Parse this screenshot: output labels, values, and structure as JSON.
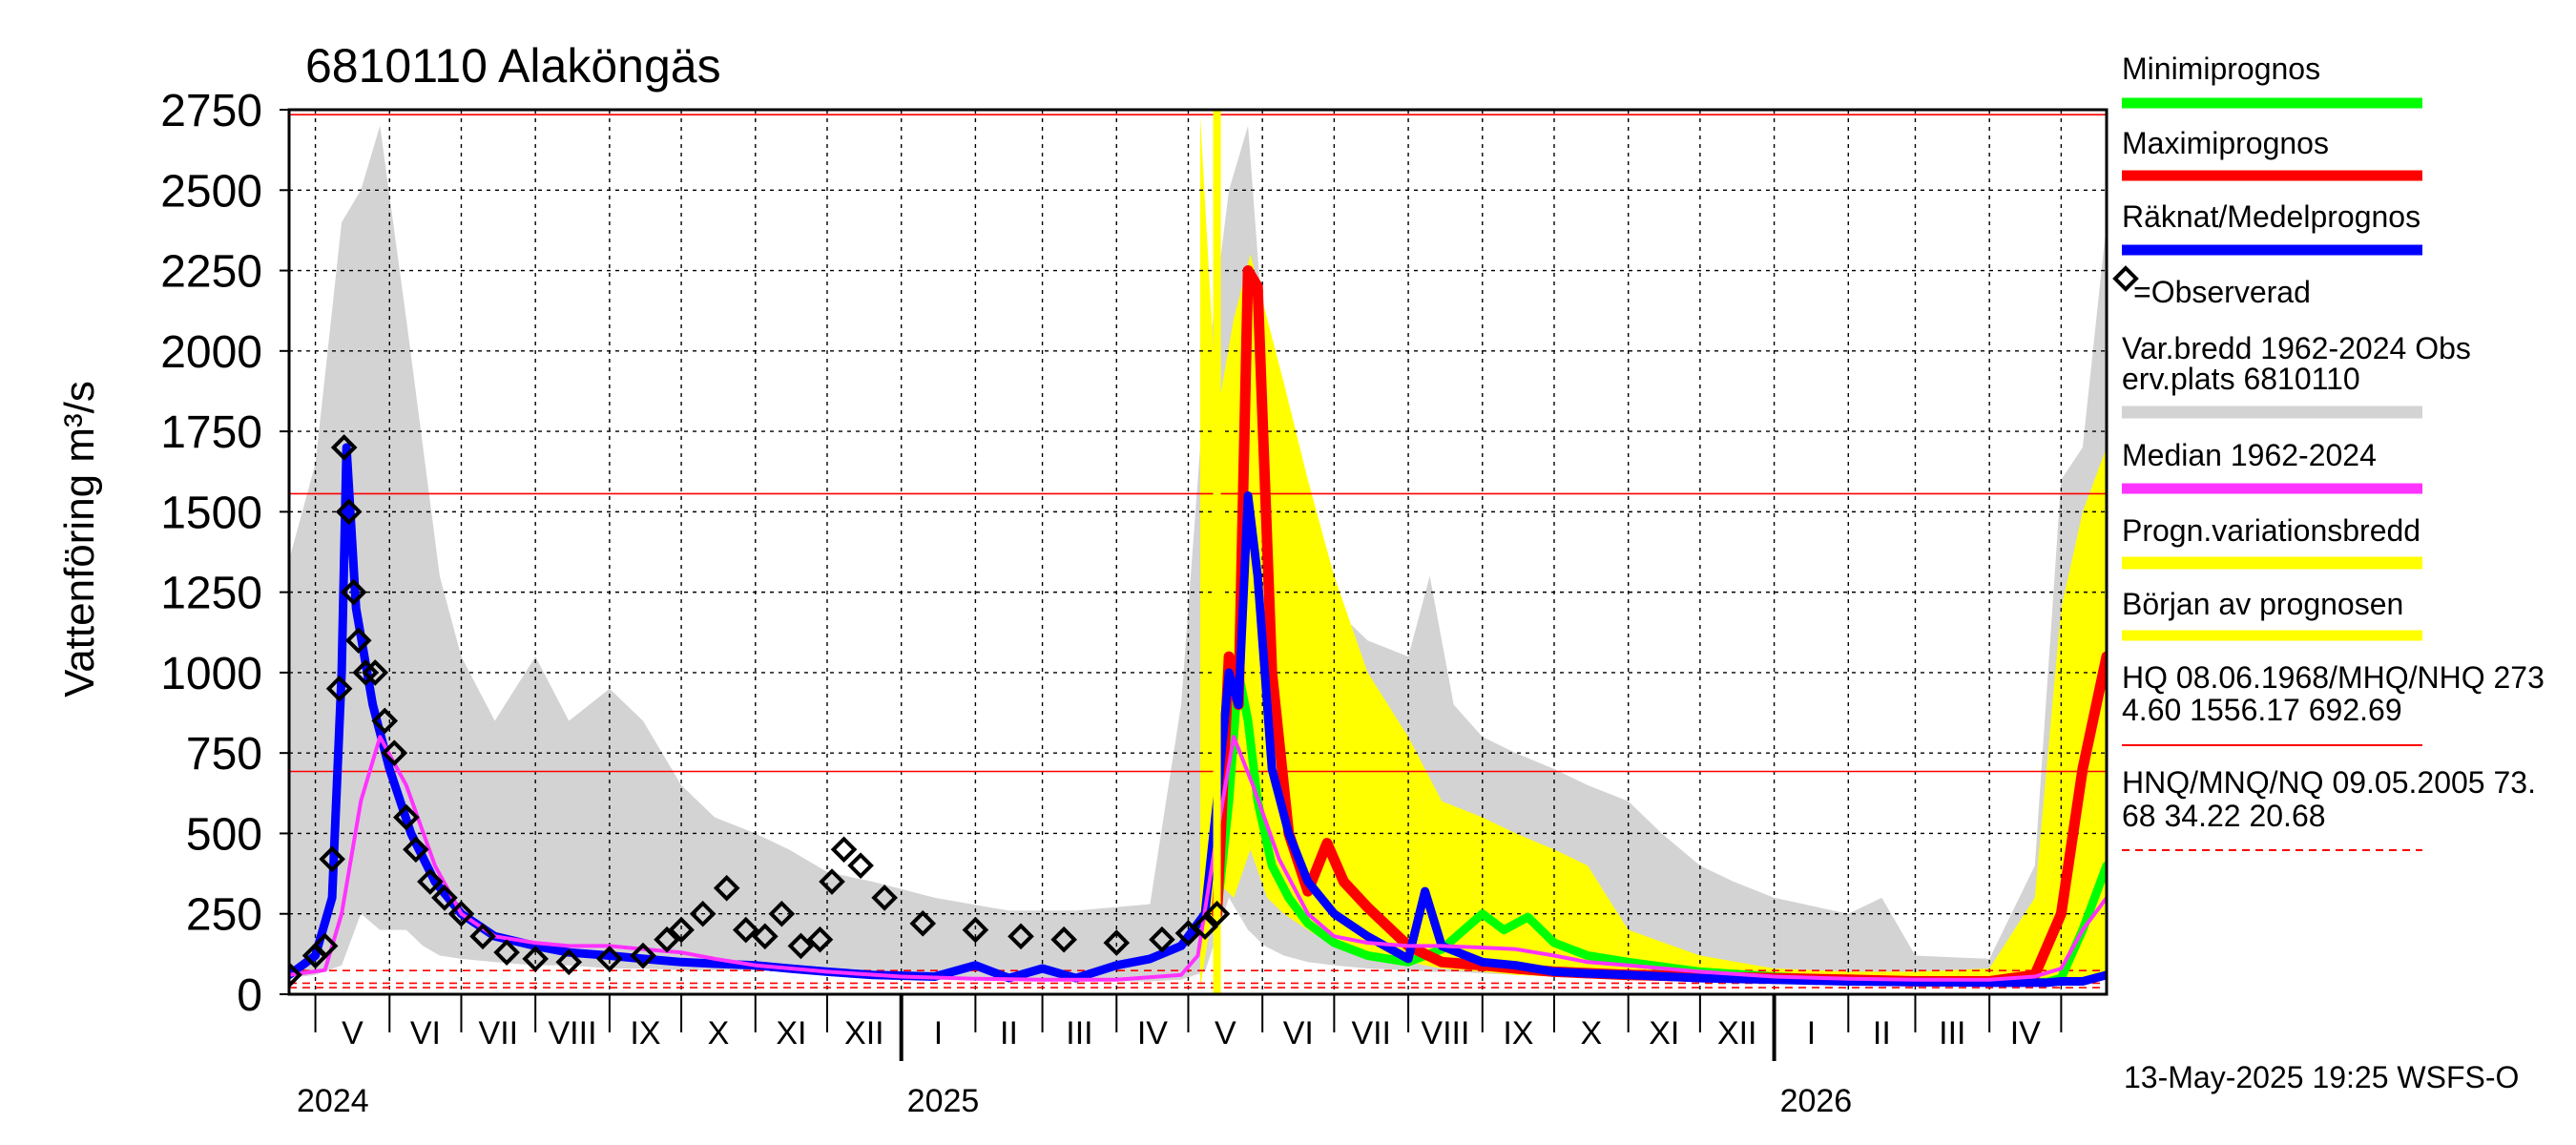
{
  "chart_data": {
    "type": "line",
    "title": "6810110 Alaköngäs",
    "ylabel": "Vattenföring m³/s",
    "ylim": [
      0,
      2750
    ],
    "yticks": [
      0,
      250,
      500,
      750,
      1000,
      1250,
      1500,
      1750,
      2000,
      2250,
      2500,
      2750
    ],
    "x_start": "2024-04-20",
    "x_end": "2026-05-20",
    "grid": true,
    "legend_position": "right",
    "years": [
      {
        "label": "2024",
        "date": "2024-01-01"
      },
      {
        "label": "2025",
        "date": "2025-01-01"
      },
      {
        "label": "2026",
        "date": "2026-01-01"
      }
    ],
    "months": [
      {
        "label": "V",
        "start": "2024-05-01"
      },
      {
        "label": "VI",
        "start": "2024-06-01"
      },
      {
        "label": "VII",
        "start": "2024-07-01"
      },
      {
        "label": "VIII",
        "start": "2024-08-01"
      },
      {
        "label": "IX",
        "start": "2024-09-01"
      },
      {
        "label": "X",
        "start": "2024-10-01"
      },
      {
        "label": "XI",
        "start": "2024-11-01"
      },
      {
        "label": "XII",
        "start": "2024-12-01"
      },
      {
        "label": "I",
        "start": "2025-01-01"
      },
      {
        "label": "II",
        "start": "2025-02-01"
      },
      {
        "label": "III",
        "start": "2025-03-01"
      },
      {
        "label": "IV",
        "start": "2025-04-01"
      },
      {
        "label": "V",
        "start": "2025-05-01"
      },
      {
        "label": "VI",
        "start": "2025-06-01"
      },
      {
        "label": "VII",
        "start": "2025-07-01"
      },
      {
        "label": "VIII",
        "start": "2025-08-01"
      },
      {
        "label": "IX",
        "start": "2025-09-01"
      },
      {
        "label": "X",
        "start": "2025-10-01"
      },
      {
        "label": "XI",
        "start": "2025-11-01"
      },
      {
        "label": "XII",
        "start": "2025-12-01"
      },
      {
        "label": "I",
        "start": "2026-01-01"
      },
      {
        "label": "II",
        "start": "2026-02-01"
      },
      {
        "label": "III",
        "start": "2026-03-01"
      },
      {
        "label": "IV",
        "start": "2026-04-01"
      },
      {
        "label": "",
        "start": "2026-05-01"
      }
    ],
    "reference_lines": {
      "HQ": 2734.6,
      "MHQ": 1556.17,
      "NHQ": 692.69,
      "HNQ": 73.68,
      "MNQ": 34.22,
      "NQ": 20.68
    },
    "forecast_start": "2025-05-13",
    "series": {
      "historical_range": {
        "name": "Var.bredd 1962-2024   Obs erv.plats 6810110",
        "color": "#d3d3d3",
        "dates": [
          "2024-04-20",
          "2024-05-01",
          "2024-05-12",
          "2024-05-20",
          "2024-05-28",
          "2024-06-08",
          "2024-06-15",
          "2024-06-22",
          "2024-07-01",
          "2024-07-15",
          "2024-08-01",
          "2024-08-15",
          "2024-09-01",
          "2024-09-15",
          "2024-10-01",
          "2024-10-15",
          "2024-11-01",
          "2024-11-15",
          "2024-12-01",
          "2024-12-20",
          "2025-01-15",
          "2025-02-15",
          "2025-03-15",
          "2025-04-15",
          "2025-04-28",
          "2025-05-08",
          "2025-05-18",
          "2025-05-26",
          "2025-06-02",
          "2025-06-10",
          "2025-06-20",
          "2025-07-01",
          "2025-07-15",
          "2025-08-01",
          "2025-08-10",
          "2025-08-20",
          "2025-09-01",
          "2025-09-15",
          "2025-10-01",
          "2025-10-15",
          "2025-11-01",
          "2025-11-15",
          "2025-12-01",
          "2025-12-15",
          "2026-01-01",
          "2026-02-01",
          "2026-02-15",
          "2026-03-01",
          "2026-04-01",
          "2026-04-20",
          "2026-05-01",
          "2026-05-10",
          "2026-05-20"
        ],
        "max": [
          1350,
          1650,
          2400,
          2500,
          2700,
          2100,
          1700,
          1300,
          1050,
          850,
          1050,
          850,
          950,
          850,
          650,
          550,
          500,
          450,
          380,
          350,
          300,
          260,
          260,
          280,
          900,
          1900,
          2500,
          2700,
          2000,
          1700,
          1300,
          1200,
          1100,
          1050,
          1300,
          900,
          800,
          750,
          700,
          650,
          600,
          500,
          400,
          350,
          300,
          250,
          300,
          120,
          110,
          400,
          1600,
          1700,
          2400
        ],
        "min": [
          50,
          60,
          90,
          250,
          200,
          200,
          150,
          120,
          110,
          100,
          90,
          90,
          80,
          80,
          75,
          75,
          75,
          70,
          65,
          60,
          50,
          45,
          40,
          40,
          45,
          70,
          300,
          200,
          150,
          120,
          100,
          90,
          80,
          75,
          70,
          70,
          65,
          60,
          55,
          50,
          50,
          45,
          45,
          40,
          40,
          35,
          35,
          35,
          30,
          30,
          35,
          40,
          50
        ]
      },
      "forecast_range": {
        "name": "Progn.variationsbredd",
        "color": "#ffff00",
        "dates": [
          "2025-05-06",
          "2025-05-13",
          "2025-05-20",
          "2025-05-27",
          "2025-06-03",
          "2025-06-10",
          "2025-06-20",
          "2025-07-01",
          "2025-07-15",
          "2025-08-01",
          "2025-08-15",
          "2025-09-01",
          "2025-09-15",
          "2025-10-01",
          "2025-10-15",
          "2025-11-01",
          "2025-12-01",
          "2026-01-01",
          "2026-02-01",
          "2026-03-01",
          "2026-04-01",
          "2026-04-20",
          "2026-05-01",
          "2026-05-10",
          "2026-05-20"
        ],
        "max": [
          2730,
          1800,
          2100,
          2300,
          2100,
          1900,
          1600,
          1300,
          1000,
          800,
          600,
          550,
          500,
          450,
          400,
          200,
          120,
          80,
          70,
          70,
          80,
          300,
          1200,
          1500,
          1700
        ],
        "min": [
          20,
          350,
          300,
          450,
          300,
          250,
          200,
          150,
          120,
          100,
          80,
          70,
          60,
          55,
          50,
          45,
          40,
          35,
          30,
          28,
          28,
          30,
          40,
          50,
          60
        ]
      },
      "median": {
        "name": "Median 1962-2024",
        "color": "#ff33ff",
        "dates": [
          "2024-04-20",
          "2024-05-05",
          "2024-05-12",
          "2024-05-20",
          "2024-05-28",
          "2024-06-08",
          "2024-06-20",
          "2024-07-01",
          "2024-07-15",
          "2024-08-01",
          "2024-08-15",
          "2024-09-01",
          "2024-09-15",
          "2024-10-01",
          "2024-10-15",
          "2024-11-01",
          "2024-12-01",
          "2025-01-01",
          "2025-02-01",
          "2025-03-01",
          "2025-04-01",
          "2025-04-28",
          "2025-05-05",
          "2025-05-12",
          "2025-05-20",
          "2025-05-28",
          "2025-06-08",
          "2025-06-20",
          "2025-07-01",
          "2025-07-15",
          "2025-08-01",
          "2025-08-15",
          "2025-09-01",
          "2025-09-15",
          "2025-10-01",
          "2025-10-15",
          "2025-11-01",
          "2025-12-01",
          "2026-01-01",
          "2026-02-01",
          "2026-03-01",
          "2026-04-01",
          "2026-04-20",
          "2026-05-01",
          "2026-05-10",
          "2026-05-20"
        ],
        "values": [
          60,
          75,
          250,
          600,
          800,
          650,
          400,
          250,
          180,
          160,
          150,
          150,
          140,
          130,
          110,
          90,
          70,
          55,
          48,
          45,
          45,
          60,
          120,
          450,
          800,
          650,
          420,
          250,
          180,
          160,
          150,
          150,
          145,
          140,
          120,
          100,
          90,
          70,
          55,
          48,
          45,
          45,
          55,
          80,
          200,
          300
        ]
      },
      "observed": {
        "name": "=Observerad",
        "color": "#000000",
        "dates": [
          "2024-04-20",
          "2024-05-01",
          "2024-05-05",
          "2024-05-08",
          "2024-05-11",
          "2024-05-13",
          "2024-05-15",
          "2024-05-17",
          "2024-05-19",
          "2024-05-22",
          "2024-05-26",
          "2024-05-30",
          "2024-06-03",
          "2024-06-08",
          "2024-06-12",
          "2024-06-18",
          "2024-06-24",
          "2024-07-01",
          "2024-07-10",
          "2024-07-20",
          "2024-08-01",
          "2024-08-15",
          "2024-09-01",
          "2024-09-15",
          "2024-09-25",
          "2024-10-01",
          "2024-10-10",
          "2024-10-20",
          "2024-10-28",
          "2024-11-05",
          "2024-11-12",
          "2024-11-20",
          "2024-11-28",
          "2024-12-03",
          "2024-12-08",
          "2024-12-15",
          "2024-12-25",
          "2025-01-10",
          "2025-02-01",
          "2025-02-20",
          "2025-03-10",
          "2025-04-01",
          "2025-04-20",
          "2025-05-01",
          "2025-05-08",
          "2025-05-13"
        ],
        "values": [
          60,
          120,
          150,
          420,
          950,
          1700,
          1500,
          1250,
          1100,
          1000,
          1000,
          850,
          750,
          550,
          450,
          350,
          300,
          250,
          180,
          130,
          110,
          100,
          110,
          120,
          170,
          200,
          250,
          330,
          200,
          180,
          250,
          150,
          170,
          350,
          450,
          400,
          300,
          220,
          200,
          180,
          170,
          160,
          170,
          190,
          210,
          250
        ]
      },
      "mean_forecast": {
        "name": "Räknat/Medelprognos",
        "color": "#0000ff",
        "dates": [
          "2024-04-20",
          "2024-05-01",
          "2024-05-08",
          "2024-05-12",
          "2024-05-14",
          "2024-05-18",
          "2024-05-25",
          "2024-06-01",
          "2024-06-10",
          "2024-06-20",
          "2024-07-01",
          "2024-07-15",
          "2024-08-01",
          "2024-08-15",
          "2024-09-01",
          "2024-09-15",
          "2024-10-01",
          "2024-10-15",
          "2024-11-01",
          "2024-11-15",
          "2024-12-01",
          "2024-12-20",
          "2025-01-15",
          "2025-02-01",
          "2025-02-15",
          "2025-03-01",
          "2025-03-15",
          "2025-04-01",
          "2025-04-15",
          "2025-04-28",
          "2025-05-08",
          "2025-05-13",
          "2025-05-18",
          "2025-05-22",
          "2025-05-26",
          "2025-05-30",
          "2025-06-05",
          "2025-06-12",
          "2025-06-20",
          "2025-07-01",
          "2025-07-15",
          "2025-08-01",
          "2025-08-08",
          "2025-08-15",
          "2025-09-01",
          "2025-09-15",
          "2025-10-01",
          "2025-10-15",
          "2025-11-01",
          "2025-12-01",
          "2026-01-01",
          "2026-02-01",
          "2026-03-01",
          "2026-04-01",
          "2026-04-25",
          "2026-05-01",
          "2026-05-10",
          "2026-05-20"
        ],
        "values": [
          60,
          120,
          300,
          1000,
          1700,
          1200,
          900,
          700,
          500,
          350,
          250,
          180,
          150,
          130,
          120,
          110,
          100,
          95,
          90,
          80,
          70,
          60,
          55,
          90,
          50,
          80,
          50,
          90,
          110,
          150,
          250,
          600,
          1000,
          900,
          1550,
          1300,
          700,
          500,
          350,
          250,
          180,
          110,
          320,
          150,
          100,
          90,
          70,
          65,
          60,
          50,
          45,
          40,
          38,
          36,
          36,
          40,
          40,
          60
        ]
      },
      "max_forecast": {
        "name": "Maximiprognos",
        "color": "#ff0000",
        "dates": [
          "2025-05-13",
          "2025-05-18",
          "2025-05-22",
          "2025-05-26",
          "2025-05-30",
          "2025-06-05",
          "2025-06-12",
          "2025-06-20",
          "2025-06-28",
          "2025-07-05",
          "2025-07-15",
          "2025-08-01",
          "2025-08-15",
          "2025-09-01",
          "2025-09-15",
          "2025-10-01",
          "2025-11-01",
          "2025-12-01",
          "2026-01-01",
          "2026-02-01",
          "2026-03-01",
          "2026-04-01",
          "2026-04-20",
          "2026-05-01",
          "2026-05-10",
          "2026-05-20"
        ],
        "values": [
          250,
          1050,
          900,
          2250,
          2200,
          1000,
          500,
          320,
          470,
          350,
          270,
          150,
          100,
          90,
          80,
          70,
          60,
          55,
          50,
          45,
          40,
          40,
          60,
          250,
          700,
          1050
        ]
      },
      "min_forecast": {
        "name": "Minimiprognos",
        "color": "#00ff00",
        "dates": [
          "2025-05-13",
          "2025-05-18",
          "2025-05-22",
          "2025-05-26",
          "2025-05-30",
          "2025-06-05",
          "2025-06-12",
          "2025-06-20",
          "2025-07-01",
          "2025-07-15",
          "2025-08-01",
          "2025-08-15",
          "2025-09-01",
          "2025-09-10",
          "2025-09-20",
          "2025-10-01",
          "2025-10-15",
          "2025-11-01",
          "2025-12-01",
          "2026-01-01",
          "2026-02-01",
          "2026-03-01",
          "2026-04-01",
          "2026-04-25",
          "2026-05-01",
          "2026-05-10",
          "2026-05-20"
        ],
        "values": [
          250,
          600,
          1000,
          850,
          600,
          400,
          300,
          220,
          160,
          120,
          100,
          140,
          250,
          200,
          240,
          160,
          120,
          100,
          70,
          55,
          45,
          40,
          38,
          38,
          50,
          200,
          400
        ]
      }
    },
    "legend": [
      {
        "label": "Minimiprognos",
        "color": "#00ff00",
        "kind": "line"
      },
      {
        "label": "Maximiprognos",
        "color": "#ff0000",
        "kind": "line"
      },
      {
        "label": "Räknat/Medelprognos",
        "color": "#0000ff",
        "kind": "line"
      },
      {
        "label": "=Observerad",
        "color": "#000000",
        "kind": "marker"
      },
      {
        "label": "Var.bredd 1962-2024   Obs",
        "label2": "erv.plats 6810110",
        "color": "#d3d3d3",
        "kind": "band"
      },
      {
        "label": "Median 1962-2024",
        "color": "#ff33ff",
        "kind": "line"
      },
      {
        "label": "Progn.variationsbredd",
        "color": "#ffff00",
        "kind": "band"
      },
      {
        "label": "Början av prognosen",
        "color": "#ffff00",
        "kind": "line"
      },
      {
        "label": "HQ 08.06.1968/MHQ/NHQ 2734.60 1556.17 692.69",
        "label1": "HQ 08.06.1968/MHQ/NHQ 273",
        "label2": "4.60 1556.17 692.69",
        "color": "#ff0000",
        "kind": "thin"
      },
      {
        "label": "HNQ/MNQ/NQ 09.05.2005 73.68 34.22 20.68",
        "label1": "HNQ/MNQ/NQ 09.05.2005 73.",
        "label2": "68 34.22 20.68",
        "color": "#ff0000",
        "kind": "dashed"
      }
    ],
    "footer": "13-May-2025 19:25 WSFS-O"
  }
}
